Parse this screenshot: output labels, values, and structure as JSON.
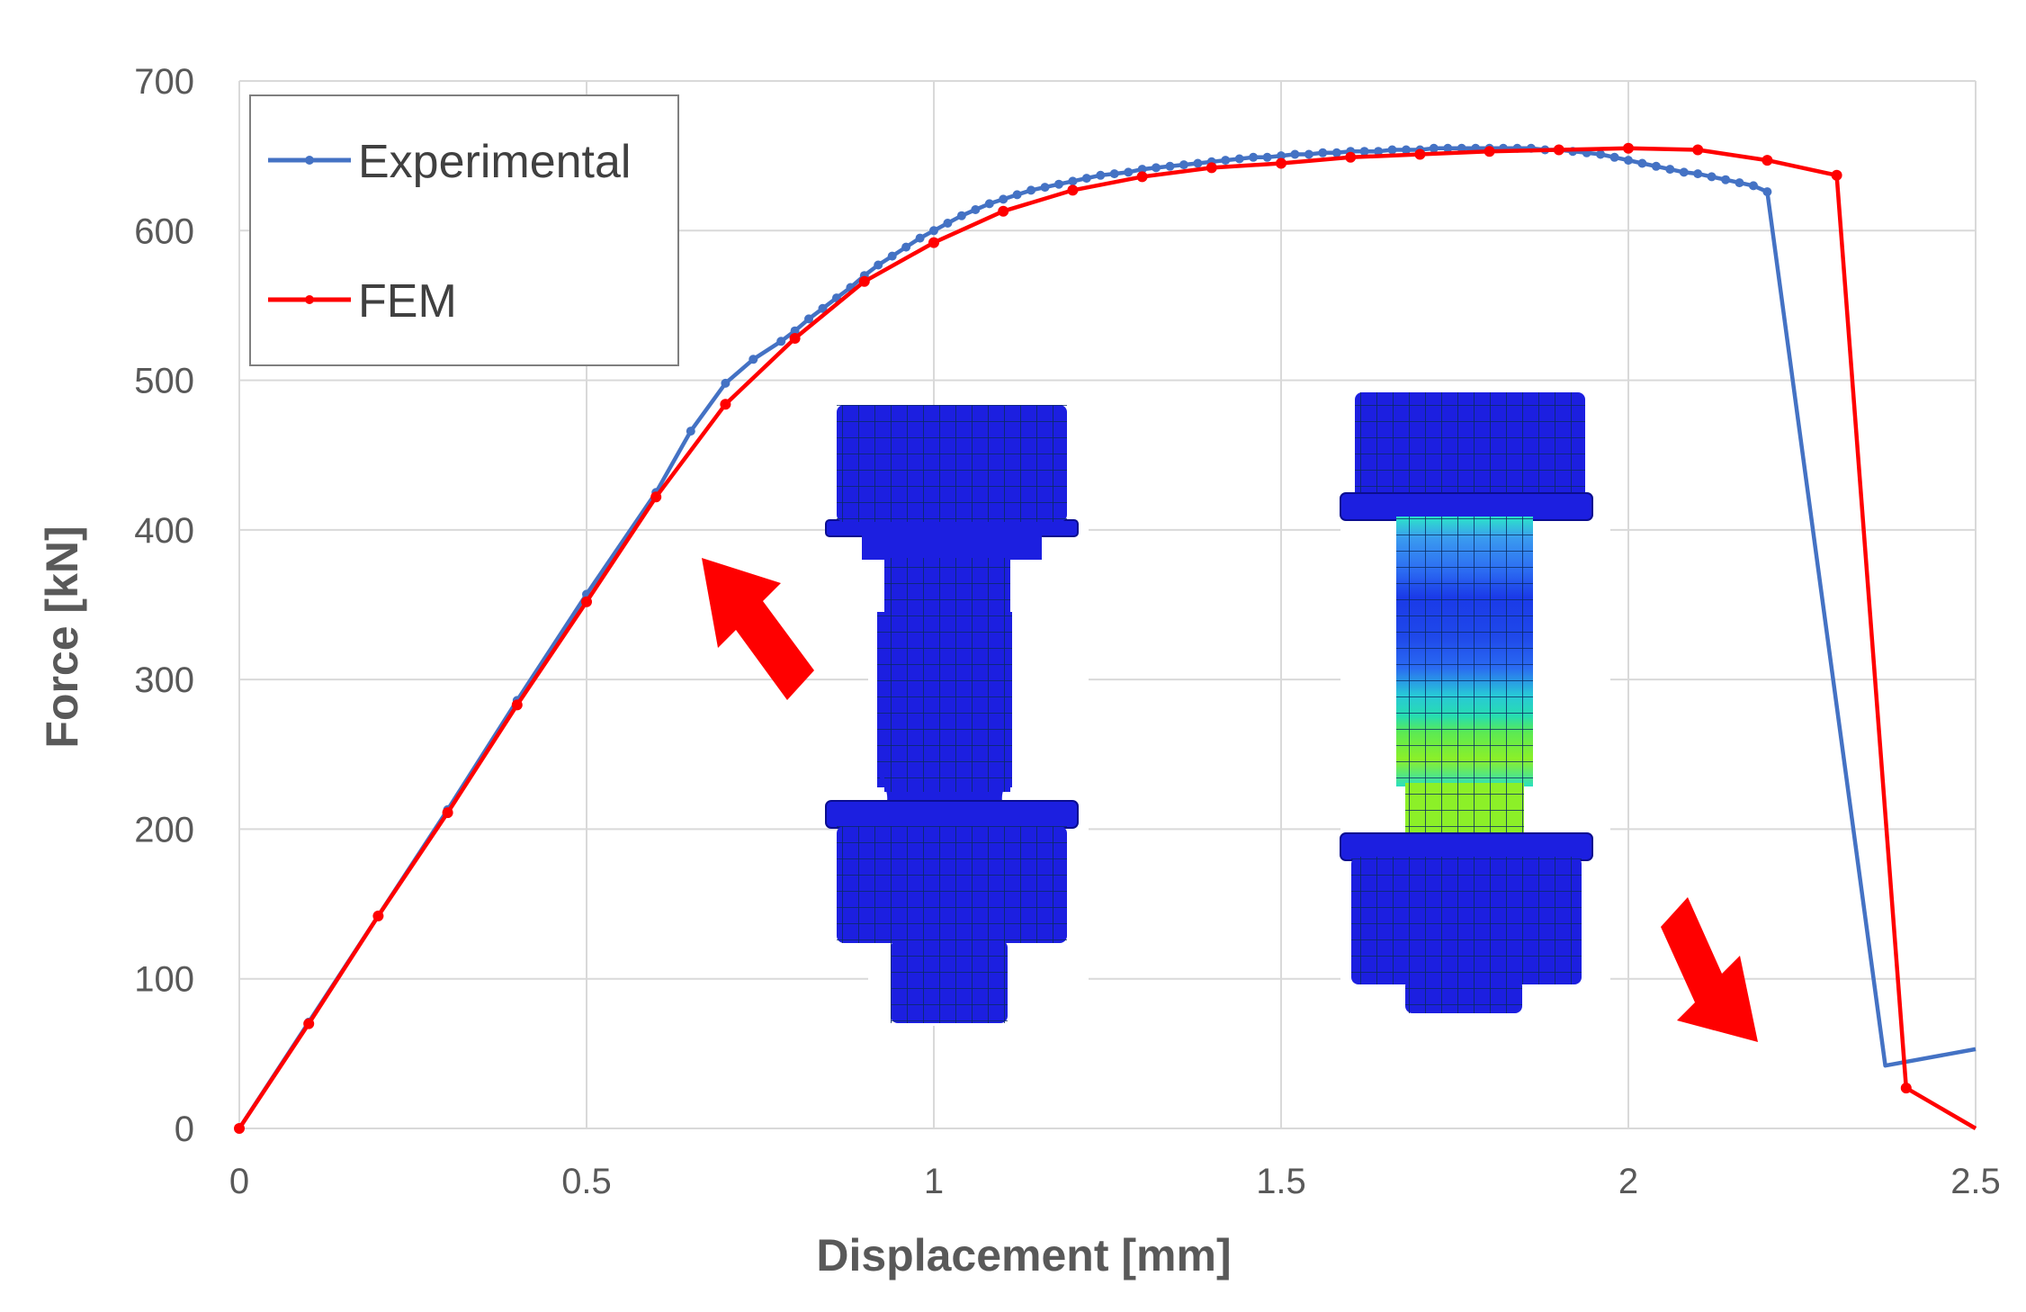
{
  "chart_data": {
    "type": "line",
    "title": "",
    "xlabel": "Displacement [mm]",
    "ylabel": "Force [kN]",
    "xlim": [
      0,
      2.5
    ],
    "ylim": [
      0,
      700
    ],
    "xticks": [
      0,
      0.5,
      1,
      1.5,
      2,
      2.5
    ],
    "xtick_labels": [
      "0",
      "0.5",
      "1",
      "1.5",
      "2",
      "2.5"
    ],
    "yticks": [
      0,
      100,
      200,
      300,
      400,
      500,
      600,
      700
    ],
    "ytick_labels": [
      "0",
      "100",
      "200",
      "300",
      "400",
      "500",
      "600",
      "700"
    ],
    "grid": true,
    "legend_position": "top-left",
    "series": [
      {
        "name": "Experimental",
        "color": "#4472C4",
        "x": [
          0,
          0.1,
          0.2,
          0.3,
          0.4,
          0.5,
          0.6,
          0.65,
          0.7,
          0.74,
          0.78,
          0.8,
          0.82,
          0.84,
          0.86,
          0.88,
          0.9,
          0.92,
          0.94,
          0.96,
          0.98,
          1.0,
          1.02,
          1.04,
          1.06,
          1.08,
          1.1,
          1.12,
          1.14,
          1.16,
          1.18,
          1.2,
          1.22,
          1.24,
          1.26,
          1.28,
          1.3,
          1.32,
          1.34,
          1.36,
          1.38,
          1.4,
          1.42,
          1.44,
          1.46,
          1.48,
          1.5,
          1.52,
          1.54,
          1.56,
          1.58,
          1.6,
          1.62,
          1.64,
          1.66,
          1.68,
          1.7,
          1.72,
          1.74,
          1.76,
          1.78,
          1.8,
          1.82,
          1.84,
          1.86,
          1.88,
          1.9,
          1.92,
          1.94,
          1.96,
          1.98,
          2.0,
          2.02,
          2.04,
          2.06,
          2.08,
          2.1,
          2.12,
          2.14,
          2.16,
          2.18,
          2.2,
          2.37,
          2.5
        ],
        "y": [
          0,
          71,
          142,
          213,
          286,
          357,
          425,
          466,
          498,
          514,
          526,
          533,
          541,
          548,
          555,
          562,
          570,
          577,
          583,
          589,
          595,
          600,
          605,
          610,
          614,
          618,
          621,
          624,
          627,
          629,
          631,
          633,
          635,
          637,
          638,
          639,
          641,
          642,
          643,
          644,
          645,
          646,
          647,
          648,
          649,
          649,
          650,
          651,
          651,
          652,
          652,
          653,
          653,
          653,
          654,
          654,
          654,
          655,
          655,
          655,
          655,
          655,
          655,
          655,
          655,
          654,
          654,
          653,
          652,
          651,
          649,
          647,
          645,
          643,
          641,
          639,
          638,
          636,
          634,
          632,
          630,
          626,
          42,
          53
        ],
        "marked_points": 82
      },
      {
        "name": "FEM",
        "color": "#FF0000",
        "x": [
          0,
          0.1,
          0.2,
          0.3,
          0.4,
          0.5,
          0.6,
          0.7,
          0.8,
          0.9,
          1.0,
          1.1,
          1.2,
          1.3,
          1.4,
          1.5,
          1.6,
          1.7,
          1.8,
          1.9,
          2.0,
          2.1,
          2.2,
          2.3,
          2.4,
          2.5
        ],
        "y": [
          0,
          70,
          142,
          211,
          283,
          352,
          422,
          484,
          528,
          566,
          592,
          613,
          627,
          636,
          642,
          645,
          649,
          651,
          653,
          654,
          655,
          654,
          647,
          637,
          27,
          0
        ],
        "marked_points": 25
      }
    ],
    "annotations": {
      "arrows": [
        {
          "description": "red arrow pointing up-left",
          "color": "#FF0000"
        },
        {
          "description": "red arrow pointing down-right",
          "color": "#FF0000"
        }
      ],
      "inset_images": [
        {
          "description": "undeformed bolt-nut FE mesh",
          "color": "#1A1AE6"
        },
        {
          "description": "deformed bolt-nut FE mesh with stress contour",
          "color": "#1A1AE6"
        }
      ]
    }
  }
}
